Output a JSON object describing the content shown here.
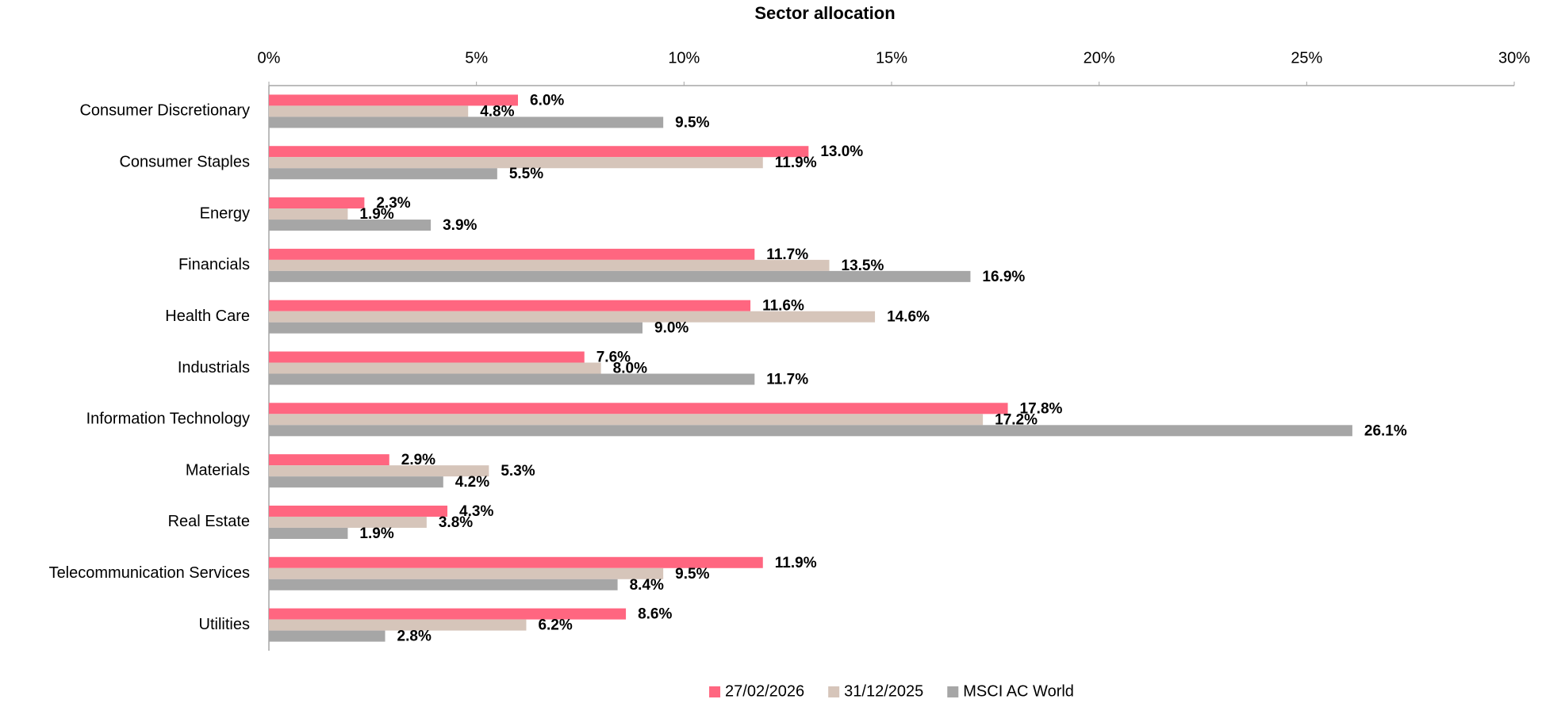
{
  "chart_data": {
    "type": "hbar",
    "title": "Sector allocation",
    "categories": [
      "Consumer Discretionary",
      "Consumer Staples",
      "Energy",
      "Financials",
      "Health Care",
      "Industrials",
      "Information Technology",
      "Materials",
      "Real Estate",
      "Telecommunication Services",
      "Utilities"
    ],
    "series": [
      {
        "name": "27/02/2026",
        "color": "#ff6680",
        "values": [
          6.0,
          13.0,
          2.3,
          11.7,
          11.6,
          7.6,
          17.8,
          2.9,
          4.3,
          11.9,
          8.6
        ],
        "value_labels": [
          "6.0%",
          "13.0%",
          "2.3%",
          "11.7%",
          "11.6%",
          "7.6%",
          "17.8%",
          "2.9%",
          "4.3%",
          "11.9%",
          "8.6%"
        ]
      },
      {
        "name": "31/12/2025",
        "color": "#d6c5ba",
        "values": [
          4.8,
          11.9,
          1.9,
          13.5,
          14.6,
          8.0,
          17.2,
          5.3,
          3.8,
          9.5,
          6.2
        ],
        "value_labels": [
          "4.8%",
          "11.9%",
          "1.9%",
          "13.5%",
          "14.6%",
          "8.0%",
          "17.2%",
          "5.3%",
          "3.8%",
          "9.5%",
          "6.2%"
        ]
      },
      {
        "name": "MSCI AC World",
        "color": "#a6a6a6",
        "values": [
          9.5,
          5.5,
          3.9,
          16.9,
          9.0,
          11.7,
          26.1,
          4.2,
          1.9,
          8.4,
          2.8
        ],
        "value_labels": [
          "9.5%",
          "5.5%",
          "3.9%",
          "16.9%",
          "9.0%",
          "11.7%",
          "26.1%",
          "4.2%",
          "1.9%",
          "8.4%",
          "2.8%"
        ]
      }
    ],
    "xlim": [
      0,
      30
    ],
    "xticks": [
      {
        "value": 0,
        "label": "0%"
      },
      {
        "value": 5,
        "label": "5%"
      },
      {
        "value": 10,
        "label": "10%"
      },
      {
        "value": 15,
        "label": "15%"
      },
      {
        "value": 20,
        "label": "20%"
      },
      {
        "value": 25,
        "label": "25%"
      },
      {
        "value": 30,
        "label": "30%"
      }
    ],
    "legend": "bottom"
  }
}
